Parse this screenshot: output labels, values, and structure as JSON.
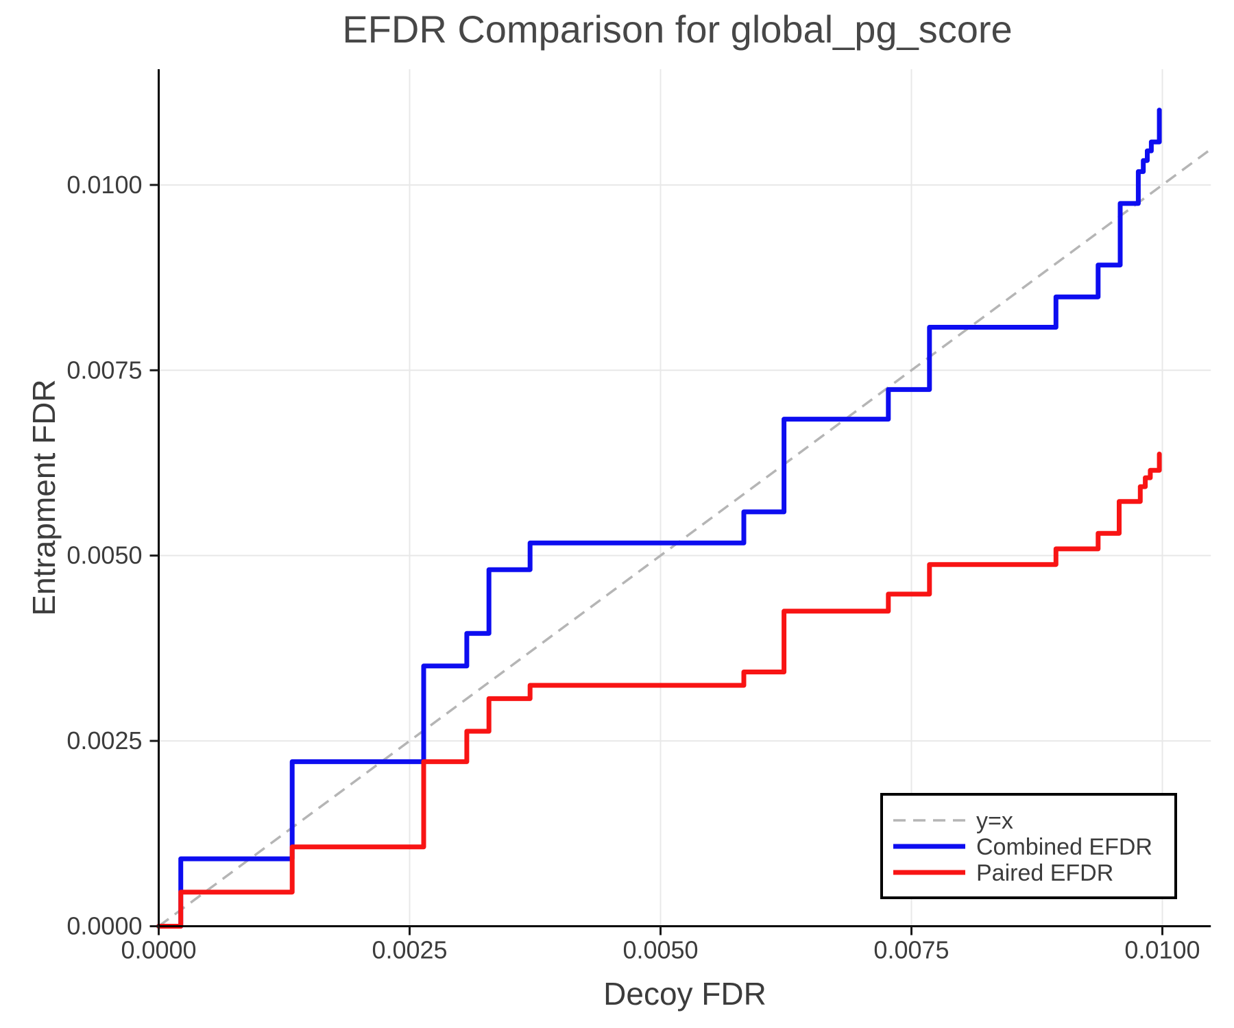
{
  "title": "EFDR Comparison for global_pg_score",
  "chart_data": {
    "type": "line",
    "subtype": "step-post",
    "title": "EFDR Comparison for global_pg_score",
    "xlabel": "Decoy FDR",
    "ylabel": "Entrapment FDR",
    "xlim": [
      0,
      0.010483
    ],
    "ylim": [
      0,
      0.011561
    ],
    "grid": true,
    "legend_position": "lower right",
    "x_ticks": {
      "values": [
        0.0,
        0.0025,
        0.005,
        0.0075,
        0.01
      ],
      "labels": [
        "0.0000",
        "0.0025",
        "0.0050",
        "0.0075",
        "0.0100"
      ]
    },
    "y_ticks": {
      "values": [
        0.0,
        0.0025,
        0.005,
        0.0075,
        0.01
      ],
      "labels": [
        "0.0000",
        "0.0025",
        "0.0050",
        "0.0075",
        "0.0100"
      ]
    },
    "reference_line": {
      "label": "y=x",
      "style": "dashed",
      "color": "#b5b5b5",
      "from": [
        0,
        0
      ],
      "to": [
        0.010483,
        0.010483
      ]
    },
    "series": [
      {
        "name": "Combined EFDR",
        "color": "#0d0df0",
        "x": [
          0,
          0.00022,
          0.00133,
          0.00264,
          0.00307,
          0.00329,
          0.0037,
          0.00583,
          0.00623,
          0.00727,
          0.00768,
          0.00894,
          0.00936,
          0.00958,
          0.00976,
          0.00981,
          0.00985,
          0.00989,
          0.00997
        ],
        "y": [
          0,
          0.00091,
          0.00222,
          0.00351,
          0.00395,
          0.00481,
          0.00517,
          0.00559,
          0.00684,
          0.00724,
          0.00808,
          0.00849,
          0.00892,
          0.00975,
          0.01018,
          0.01033,
          0.01046,
          0.01058,
          0.01101
        ]
      },
      {
        "name": "Paired EFDR",
        "color": "#f81414",
        "x": [
          0,
          0.00022,
          0.00133,
          0.00264,
          0.00307,
          0.00329,
          0.0037,
          0.00583,
          0.00623,
          0.00727,
          0.00768,
          0.00894,
          0.00936,
          0.00957,
          0.00978,
          0.00983,
          0.00988,
          0.00997
        ],
        "y": [
          0,
          0.00046,
          0.00107,
          0.00222,
          0.00263,
          0.00307,
          0.00325,
          0.00343,
          0.00425,
          0.00448,
          0.00488,
          0.00509,
          0.0053,
          0.00573,
          0.00593,
          0.00605,
          0.00615,
          0.00637
        ]
      }
    ]
  },
  "colors": {
    "grid": "#e8e8e8",
    "spine": "#000000",
    "tick": "#1a1a1a",
    "legend_border": "#000000",
    "legend_background": "#ffffff",
    "background": "#ffffff"
  }
}
